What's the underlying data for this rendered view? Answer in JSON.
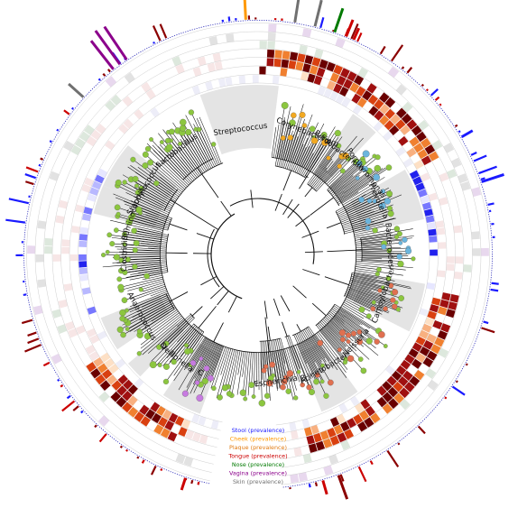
{
  "clades": [
    {
      "name": "Streptococcus",
      "label_angle": -8,
      "label_r": 140,
      "sector": [
        -20,
        7
      ],
      "shaded": true,
      "node_color": "#8cc63f"
    },
    {
      "name": "Corynebacterium",
      "label_angle": 22,
      "label_r": 146,
      "sector": [
        10,
        33
      ],
      "shaded": false,
      "node_color": "#f2a922"
    },
    {
      "name": "Bifidobacterium",
      "label_angle": 38,
      "label_r": 146,
      "sector": [
        34,
        44
      ],
      "shaded": true,
      "node_color": "#f2a922"
    },
    {
      "name": "A",
      "label_angle": 32,
      "label_r": 146,
      "sector": [
        30,
        34
      ],
      "shaded": false,
      "node_color": "#f2a922"
    },
    {
      "name": "Porphyromonas",
      "label_angle": 53,
      "label_r": 150,
      "sector": [
        46,
        60
      ],
      "shaded": false,
      "node_color": "#6bb5dd"
    },
    {
      "name": "Prevotella",
      "label_angle": 66,
      "label_r": 146,
      "sector": [
        60,
        78
      ],
      "shaded": true,
      "node_color": "#6bb5dd"
    },
    {
      "name": "Bacteroides",
      "label_angle": 86,
      "label_r": 146,
      "sector": [
        80,
        95
      ],
      "shaded": false,
      "node_color": "#6bb5dd"
    },
    {
      "name": "Campylobacter",
      "label_angle": 108,
      "label_r": 146,
      "sector": [
        100,
        117
      ],
      "shaded": true,
      "node_color": "#e07050"
    },
    {
      "name": "Neisseria",
      "label_angle": 132,
      "label_r": 146,
      "sector": [
        122,
        142
      ],
      "shaded": false,
      "node_color": "#e07050"
    },
    {
      "name": "Acinetobacter",
      "label_angle": 150,
      "label_r": 146,
      "sector": [
        144,
        158
      ],
      "shaded": true,
      "node_color": "#e07050"
    },
    {
      "name": "B",
      "label_angle": 160,
      "label_r": 146,
      "sector": [
        158,
        163
      ],
      "shaded": false,
      "node_color": "#e07050"
    },
    {
      "name": "Escherichia",
      "label_angle": 172,
      "label_r": 142,
      "sector": [
        164,
        180
      ],
      "shaded": false,
      "node_color": "#e07050"
    },
    {
      "name": "C",
      "label_angle": 206,
      "label_r": 146,
      "sector": [
        200,
        214
      ],
      "shaded": true,
      "node_color": "#c77be0"
    },
    {
      "name": "Veillonella",
      "label_angle": 218,
      "label_r": 146,
      "sector": [
        214,
        224
      ],
      "shaded": false,
      "node_color": "#8cc63f"
    },
    {
      "name": "D",
      "label_angle": 226,
      "label_r": 146,
      "sector": [
        224,
        230
      ],
      "shaded": true,
      "node_color": "#8cc63f"
    },
    {
      "name": "Anaerococcus",
      "label_angle": 242,
      "label_r": 146,
      "sector": [
        236,
        248
      ],
      "shaded": true,
      "node_color": "#8cc63f"
    },
    {
      "name": "Clostridium",
      "label_angle": 272,
      "label_r": 148,
      "sector": [
        258,
        284
      ],
      "shaded": false,
      "node_color": "#8cc63f"
    },
    {
      "name": "Ruminococcus",
      "label_angle": 288,
      "label_r": 146,
      "sector": [
        284,
        294
      ],
      "shaded": true,
      "node_color": "#8cc63f"
    },
    {
      "name": "Staphylococcus",
      "label_angle": 300,
      "label_r": 146,
      "sector": [
        294,
        310
      ],
      "shaded": true,
      "node_color": "#8cc63f"
    },
    {
      "name": "Lactobacillus",
      "label_angle": 322,
      "label_r": 146,
      "sector": [
        314,
        336
      ],
      "shaded": false,
      "node_color": "#8cc63f"
    }
  ],
  "rings": [
    {
      "name": "Stool (prevalence)",
      "color": "#1a1aff"
    },
    {
      "name": "Cheek (prevalence)",
      "color": "#ff9900"
    },
    {
      "name": "Plaque (prevalence)",
      "color": "#e07a10"
    },
    {
      "name": "Tongue (prevalence)",
      "color": "#cc0000"
    },
    {
      "name": "Nose (prevalence)",
      "color": "#007a00"
    },
    {
      "name": "Vagina (prevalence)",
      "color": "#8b008b"
    },
    {
      "name": "Skin (prevalence)",
      "color": "#707070"
    }
  ]
}
